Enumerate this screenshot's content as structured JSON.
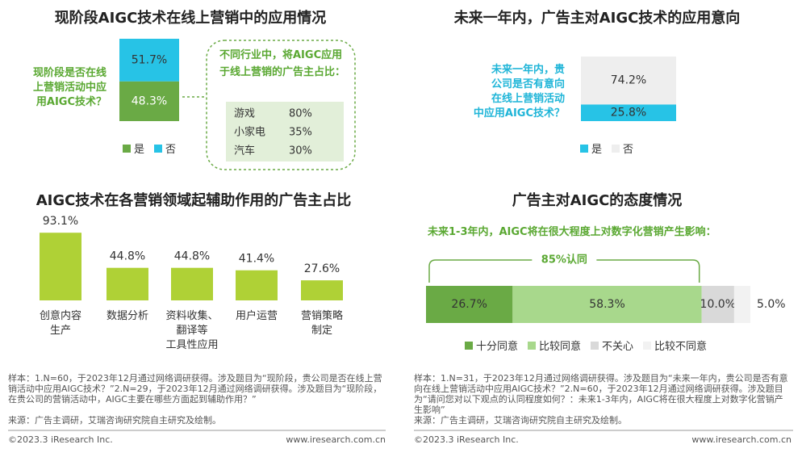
{
  "chart_data": [
    {
      "type": "stacked-column",
      "title": "现阶段AIGC技术在线上营销中的应用情况",
      "question": "现阶段是否在线\n上营销活动中应\n用AIGC技术？",
      "ylim": [
        0,
        100
      ],
      "series": [
        {
          "name": "是",
          "color": "#6aaa45",
          "values": [
            48.3
          ],
          "value_labels": [
            "48.3%"
          ]
        },
        {
          "name": "否",
          "color": "#27c3e6",
          "values": [
            51.7
          ],
          "value_labels": [
            "51.7%"
          ]
        }
      ],
      "callout": {
        "title": "不同行业中，将AIGC应用于线上营销的广告主占比：",
        "rows": [
          [
            "游戏",
            "80%"
          ],
          [
            "小家电",
            "35%"
          ],
          [
            "汽车",
            "30%"
          ]
        ]
      }
    },
    {
      "type": "stacked-column",
      "title": "未来一年内，广告主对AIGC技术的应用意向",
      "question": "未来一年内，贵\n公司是否有意向\n在线上营销活动\n中应用AIGC技术？",
      "ylim": [
        0,
        100
      ],
      "series": [
        {
          "name": "是",
          "color": "#27c3e6",
          "values": [
            25.8
          ],
          "value_labels": [
            "25.8%"
          ]
        },
        {
          "name": "否",
          "color": "#eeeeee",
          "values": [
            74.2
          ],
          "value_labels": [
            "74.2%"
          ]
        }
      ]
    },
    {
      "type": "bar",
      "title": "AIGC技术在各营销领域起辅助作用的广告主占比",
      "categories": [
        "创意内容\n生产",
        "数据分析",
        "资料收集、\n翻译等\n工具性应用",
        "用户运营",
        "营销策略\n制定"
      ],
      "values": [
        93.1,
        44.8,
        44.8,
        41.4,
        27.6
      ],
      "value_labels": [
        "93.1%",
        "44.8%",
        "44.8%",
        "41.4%",
        "27.6%"
      ],
      "color": "#afd136",
      "ylim": [
        0,
        100
      ]
    },
    {
      "type": "stacked-bar",
      "title": "广告主对AIGC的态度情况",
      "subtitle": "未来1-3年内，AIGC将在很大程度上对数字化营销产生影响：",
      "annotation": "85%认同",
      "xlim": [
        0,
        100
      ],
      "series": [
        {
          "name": "十分同意",
          "color": "#6aaa45",
          "values": [
            26.7
          ],
          "value_labels": [
            "26.7%"
          ]
        },
        {
          "name": "比较同意",
          "color": "#a8d88c",
          "values": [
            58.3
          ],
          "value_labels": [
            "58.3%"
          ]
        },
        {
          "name": "不关心",
          "color": "#d9d9d9",
          "values": [
            10.0
          ],
          "value_labels": [
            "10.0%"
          ]
        },
        {
          "name": "比较不同意",
          "color": "#f2f2f2",
          "values": [
            5.0
          ],
          "value_labels": [
            "5.0%"
          ]
        }
      ]
    }
  ],
  "notes": [
    {
      "sample": "样本：1.N=60，于2023年12月通过网络调研获得。涉及题目为“现阶段，贵公司是否在线上营销活动中应用AIGC技术？”2.N=29，于2023年12月通过网络调研获得。涉及题目为“现阶段，在贵公司的营销活动中，AIGC主要在哪些方面起到辅助作用？”",
      "source": "来源：广告主调研，艾瑞咨询研究院自主研究及绘制。",
      "copyright": "©2023.3 iResearch Inc.",
      "url": "www.iresearch.com.cn"
    },
    {
      "sample": "样本：1.N=31，于2023年12月通过网络调研获得。涉及题目为“未来一年内，贵公司是否有意向在线上营销活动中应用AIGC技术？”2.N=60，于2023年12月通过网络调研获得。涉及题目为“请问您对以下观点的认同程度如何？：未来1-3年内，AIGC将在很大程度上对数字化营销产生影响”",
      "source": "来源：广告主调研，艾瑞咨询研究院自主研究及绘制。",
      "copyright": "©2023.3 iResearch Inc.",
      "url": "www.iresearch.com.cn"
    }
  ]
}
